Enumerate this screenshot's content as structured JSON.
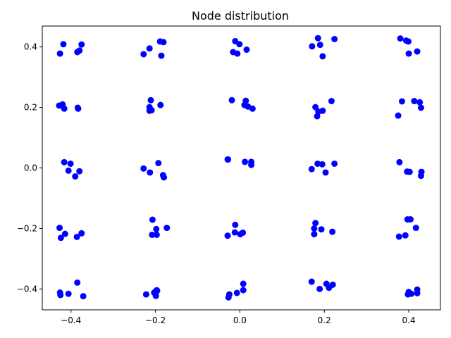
{
  "chart_data": {
    "type": "scatter",
    "title": "Node distribution",
    "xlabel": "",
    "ylabel": "",
    "xlim": [
      -0.468,
      0.475
    ],
    "ylim": [
      -0.469,
      0.469
    ],
    "x_ticks": [
      -0.4,
      -0.2,
      0.0,
      0.2,
      0.4
    ],
    "x_tick_labels": [
      "−0.4",
      "−0.2",
      "0.0",
      "0.2",
      "0.4"
    ],
    "y_ticks": [
      -0.4,
      -0.2,
      0.0,
      0.2,
      0.4
    ],
    "y_tick_labels": [
      "−0.4",
      "−0.2",
      "0.0",
      "0.2",
      "0.4"
    ],
    "grid": false,
    "marker_color": "#0000ff",
    "series": [
      {
        "points": [
          [
            -0.418,
            0.409
          ],
          [
            -0.426,
            0.378
          ],
          [
            -0.385,
            0.383
          ],
          [
            -0.38,
            0.388
          ],
          [
            -0.375,
            0.408
          ],
          [
            -0.214,
            0.395
          ],
          [
            -0.228,
            0.376
          ],
          [
            -0.189,
            0.418
          ],
          [
            -0.181,
            0.416
          ],
          [
            -0.186,
            0.371
          ],
          [
            -0.011,
            0.419
          ],
          [
            -0.001,
            0.409
          ],
          [
            -0.016,
            0.383
          ],
          [
            -0.006,
            0.378
          ],
          [
            0.016,
            0.391
          ],
          [
            0.185,
            0.429
          ],
          [
            0.224,
            0.426
          ],
          [
            0.171,
            0.402
          ],
          [
            0.19,
            0.407
          ],
          [
            0.196,
            0.369
          ],
          [
            0.38,
            0.428
          ],
          [
            0.394,
            0.421
          ],
          [
            0.399,
            0.418
          ],
          [
            0.42,
            0.385
          ],
          [
            0.4,
            0.378
          ],
          [
            -0.428,
            0.206
          ],
          [
            -0.42,
            0.21
          ],
          [
            -0.416,
            0.196
          ],
          [
            -0.384,
            0.199
          ],
          [
            -0.383,
            0.196
          ],
          [
            -0.211,
            0.224
          ],
          [
            -0.214,
            0.201
          ],
          [
            -0.214,
            0.189
          ],
          [
            -0.209,
            0.191
          ],
          [
            -0.188,
            0.208
          ],
          [
            -0.019,
            0.224
          ],
          [
            0.014,
            0.222
          ],
          [
            0.011,
            0.208
          ],
          [
            0.019,
            0.203
          ],
          [
            0.03,
            0.196
          ],
          [
            0.183,
            0.171
          ],
          [
            0.186,
            0.186
          ],
          [
            0.196,
            0.189
          ],
          [
            0.217,
            0.221
          ],
          [
            0.179,
            0.201
          ],
          [
            0.375,
            0.173
          ],
          [
            0.384,
            0.22
          ],
          [
            0.413,
            0.221
          ],
          [
            0.426,
            0.217
          ],
          [
            0.429,
            0.199
          ],
          [
            -0.416,
            0.019
          ],
          [
            -0.401,
            0.014
          ],
          [
            -0.406,
            -0.009
          ],
          [
            -0.39,
            -0.028
          ],
          [
            -0.38,
            -0.011
          ],
          [
            -0.228,
            -0.002
          ],
          [
            -0.213,
            -0.015
          ],
          [
            -0.193,
            0.016
          ],
          [
            -0.182,
            -0.024
          ],
          [
            -0.18,
            -0.031
          ],
          [
            -0.029,
            0.028
          ],
          [
            -0.028,
            0.028
          ],
          [
            0.012,
            0.02
          ],
          [
            0.027,
            0.02
          ],
          [
            0.027,
            0.01
          ],
          [
            0.17,
            -0.004
          ],
          [
            0.184,
            0.014
          ],
          [
            0.195,
            0.012
          ],
          [
            0.203,
            -0.015
          ],
          [
            0.224,
            0.014
          ],
          [
            0.378,
            0.019
          ],
          [
            0.396,
            -0.012
          ],
          [
            0.402,
            -0.013
          ],
          [
            0.43,
            -0.013
          ],
          [
            0.429,
            -0.026
          ],
          [
            -0.427,
            -0.198
          ],
          [
            -0.424,
            -0.231
          ],
          [
            -0.414,
            -0.218
          ],
          [
            -0.386,
            -0.228
          ],
          [
            -0.375,
            -0.216
          ],
          [
            -0.207,
            -0.171
          ],
          [
            -0.198,
            -0.202
          ],
          [
            -0.208,
            -0.221
          ],
          [
            -0.197,
            -0.221
          ],
          [
            -0.173,
            -0.198
          ],
          [
            -0.029,
            -0.224
          ],
          [
            -0.011,
            -0.188
          ],
          [
            -0.012,
            -0.213
          ],
          [
            0.001,
            -0.219
          ],
          [
            0.007,
            -0.214
          ],
          [
            0.179,
            -0.182
          ],
          [
            0.176,
            -0.2
          ],
          [
            0.176,
            -0.219
          ],
          [
            0.193,
            -0.203
          ],
          [
            0.219,
            -0.211
          ],
          [
            0.377,
            -0.227
          ],
          [
            0.392,
            -0.223
          ],
          [
            0.397,
            -0.17
          ],
          [
            0.404,
            -0.17
          ],
          [
            0.417,
            -0.198
          ],
          [
            -0.426,
            -0.412
          ],
          [
            -0.425,
            -0.42
          ],
          [
            -0.406,
            -0.416
          ],
          [
            -0.385,
            -0.379
          ],
          [
            -0.371,
            -0.424
          ],
          [
            -0.222,
            -0.418
          ],
          [
            -0.203,
            -0.412
          ],
          [
            -0.199,
            -0.423
          ],
          [
            -0.196,
            -0.406
          ],
          [
            -0.197,
            -0.404
          ],
          [
            -0.027,
            -0.428
          ],
          [
            -0.025,
            -0.418
          ],
          [
            -0.007,
            -0.413
          ],
          [
            0.008,
            -0.383
          ],
          [
            0.008,
            -0.404
          ],
          [
            0.17,
            -0.376
          ],
          [
            0.189,
            -0.4
          ],
          [
            0.205,
            -0.383
          ],
          [
            0.211,
            -0.396
          ],
          [
            0.22,
            -0.386
          ],
          [
            0.398,
            -0.418
          ],
          [
            0.4,
            -0.41
          ],
          [
            0.406,
            -0.416
          ],
          [
            0.42,
            -0.402
          ],
          [
            0.42,
            -0.414
          ]
        ]
      }
    ]
  }
}
